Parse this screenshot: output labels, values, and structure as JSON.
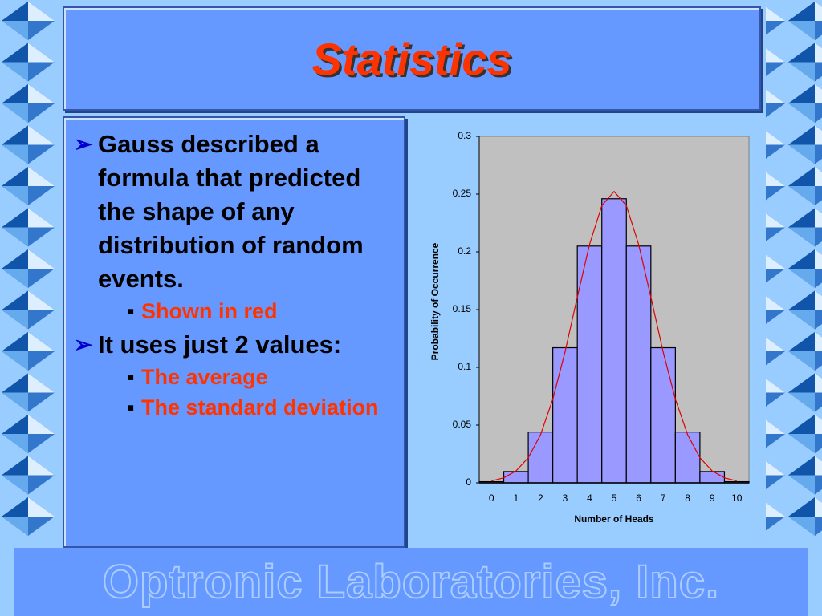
{
  "slide": {
    "title": "Statistics",
    "bullets": [
      {
        "text": "Gauss described a formula that predicted the shape of any distribution of random events.",
        "sub": [
          "Shown in red"
        ]
      },
      {
        "text": "It uses just 2 values:",
        "sub": [
          "The average",
          "The standard deviation"
        ]
      }
    ],
    "footer": "Optronic Laboratories, Inc."
  },
  "chart_data": {
    "type": "bar",
    "x_label": "Number of Heads",
    "y_label": "Probability of Occurrence",
    "categories": [
      "0",
      "1",
      "2",
      "3",
      "4",
      "5",
      "6",
      "7",
      "8",
      "9",
      "10"
    ],
    "values": [
      0.001,
      0.0098,
      0.044,
      0.117,
      0.205,
      0.246,
      0.205,
      0.117,
      0.044,
      0.0098,
      0.001
    ],
    "color": "#9999ff",
    "background": "#c0c0c0",
    "ylim": [
      0,
      0.3
    ],
    "yticks": [
      0,
      0.05,
      0.1,
      0.15,
      0.2,
      0.25,
      0.3
    ],
    "curve": {
      "color": "#e00000",
      "x": [
        0,
        0.5,
        1,
        1.5,
        2,
        2.5,
        3,
        3.5,
        4,
        4.5,
        5,
        5.5,
        6,
        6.5,
        7,
        7.5,
        8,
        8.5,
        9,
        9.5,
        10
      ],
      "values": [
        0.0017,
        0.0044,
        0.0103,
        0.0218,
        0.0417,
        0.0723,
        0.1134,
        0.1609,
        0.2066,
        0.24,
        0.2523,
        0.24,
        0.2066,
        0.1609,
        0.1134,
        0.0723,
        0.0417,
        0.0218,
        0.0103,
        0.0044,
        0.0017
      ]
    }
  }
}
